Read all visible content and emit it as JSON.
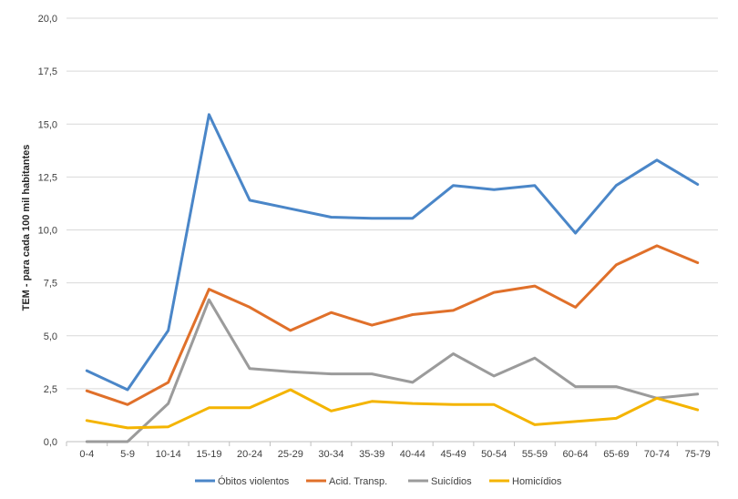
{
  "chart_data": {
    "type": "line",
    "title": "",
    "xlabel": "",
    "ylabel": "TEM - para cada 100 mil habitantes",
    "ylim": [
      0,
      20
    ],
    "yticks": [
      "0,0",
      "2,5",
      "5,0",
      "7,5",
      "10,0",
      "12,5",
      "15,0",
      "17,5",
      "20,0"
    ],
    "categories": [
      "0-4",
      "5-9",
      "10-14",
      "15-19",
      "20-24",
      "25-29",
      "30-34",
      "35-39",
      "40-44",
      "45-49",
      "50-54",
      "55-59",
      "60-64",
      "65-69",
      "70-74",
      "75-79"
    ],
    "grid": true,
    "legend_position": "bottom",
    "series": [
      {
        "name": "Óbitos violentos",
        "color": "#4a86c8",
        "values": [
          3.35,
          2.45,
          5.25,
          15.45,
          11.4,
          11.0,
          10.6,
          10.55,
          10.55,
          12.1,
          11.9,
          12.1,
          9.85,
          12.1,
          13.3,
          12.15
        ]
      },
      {
        "name": "Acid. Transp.",
        "color": "#e0702a",
        "values": [
          2.4,
          1.75,
          2.8,
          7.2,
          6.35,
          5.25,
          6.1,
          5.5,
          6.0,
          6.2,
          7.05,
          7.35,
          6.35,
          8.35,
          9.25,
          8.45
        ]
      },
      {
        "name": "Suicídios",
        "color": "#9b9b9b",
        "values": [
          0.0,
          0.0,
          1.8,
          6.7,
          3.45,
          3.3,
          3.2,
          3.2,
          2.8,
          4.15,
          3.1,
          3.95,
          2.6,
          2.6,
          2.05,
          2.25
        ]
      },
      {
        "name": "Homicídios",
        "color": "#f4b400",
        "values": [
          1.0,
          0.65,
          0.7,
          1.6,
          1.6,
          2.45,
          1.45,
          1.9,
          1.8,
          1.75,
          1.75,
          0.8,
          0.95,
          1.1,
          2.05,
          1.5
        ]
      }
    ]
  }
}
